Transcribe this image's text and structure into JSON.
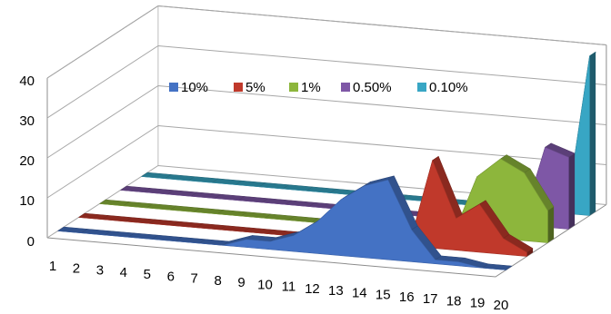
{
  "chart_data": {
    "type": "area",
    "view": "3d-depth",
    "categories": [
      "1",
      "2",
      "3",
      "4",
      "5",
      "6",
      "7",
      "8",
      "9",
      "10",
      "11",
      "12",
      "13",
      "14",
      "15",
      "16",
      "17",
      "18",
      "19",
      "20"
    ],
    "series": [
      {
        "name": "10%",
        "color": "#4472C4",
        "values": [
          0,
          0,
          0,
          0,
          0,
          0,
          0,
          0,
          2,
          2,
          4,
          8,
          14,
          18,
          20,
          8,
          1,
          1,
          0,
          0
        ]
      },
      {
        "name": "5%",
        "color": "#C0392B",
        "values": [
          0,
          0,
          0,
          0,
          0,
          0,
          0,
          0,
          0,
          0,
          0,
          0,
          0,
          0,
          0,
          22,
          8,
          12,
          4,
          1
        ]
      },
      {
        "name": "1%",
        "color": "#8DB63C",
        "values": [
          0,
          0,
          0,
          0,
          0,
          0,
          0,
          0,
          0,
          0,
          0,
          0,
          0,
          0,
          0,
          0,
          15,
          20,
          17,
          8
        ]
      },
      {
        "name": "0.50%",
        "color": "#7E57A6",
        "values": [
          0,
          0,
          0,
          0,
          0,
          0,
          0,
          0,
          0,
          0,
          0,
          0,
          0,
          0,
          0,
          0,
          0,
          0,
          20,
          18
        ]
      },
      {
        "name": "0.10%",
        "color": "#38A6C4",
        "values": [
          0,
          0,
          0,
          0,
          0,
          0,
          0,
          0,
          0,
          0,
          0,
          0,
          0,
          0,
          0,
          0,
          0,
          0,
          0,
          40
        ]
      }
    ],
    "y_ticks": [
      "0",
      "10",
      "20",
      "30",
      "40"
    ],
    "ylim": [
      0,
      40
    ],
    "grid": true,
    "legend_position": "top"
  }
}
